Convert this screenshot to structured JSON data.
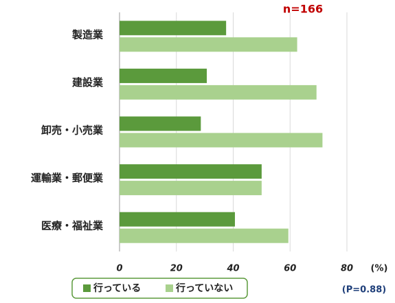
{
  "chart_data": {
    "type": "hbar",
    "annotations": [
      "n=166",
      "(P=0.88)"
    ],
    "x_label": "(%)",
    "categories": [
      "製造業",
      "建設業",
      "卸売・小売業",
      "運輸業・郵便業",
      "医療・福祉業"
    ],
    "series": [
      {
        "name": "行っている",
        "color": "#5b9a3c",
        "values": [
          37.5,
          30.7,
          28.6,
          50.0,
          40.6
        ]
      },
      {
        "name": "行っていない",
        "color": "#a9d18e",
        "values": [
          62.5,
          69.3,
          71.4,
          50.0,
          59.4
        ]
      }
    ],
    "xlim": [
      0,
      80
    ],
    "xticks": [
      0,
      20,
      40,
      60,
      80
    ],
    "grid": true,
    "legend": "bottom"
  }
}
